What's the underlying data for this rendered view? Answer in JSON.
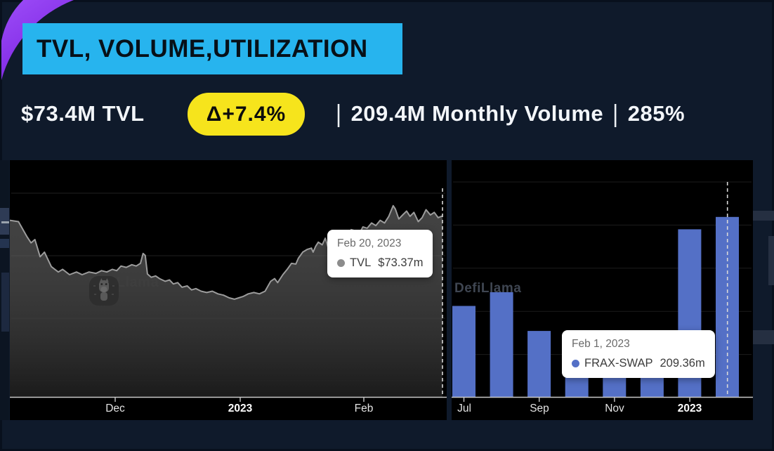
{
  "header": {
    "title": "TVL, VOLUME,UTILIZATION"
  },
  "stats": {
    "tvl": "$73.4M TVL",
    "delta": "Δ+7.4%",
    "sep": "|",
    "volume": "209.4M Monthly Volume",
    "utilization": "285%"
  },
  "colors": {
    "background": "#0f1a2b",
    "panel": "#000000",
    "accent_cyan": "#27b4ee",
    "badge_yellow": "#f6e41c",
    "corner_purple": "#8b2ff5",
    "bar_blue": "#5470c6",
    "line_grey": "#9c9c9c",
    "tvl_dot_grey": "#8c8c8c"
  },
  "chart_data": [
    {
      "type": "area",
      "name": "TVL",
      "x_range": "Nov 2022 – Feb 20, 2023",
      "x_ticks": [
        "Dec",
        "2023",
        "Feb"
      ],
      "ylim": [
        46,
        80.5
      ],
      "unit": "USD millions",
      "grid": true,
      "legend": "none (hover tooltip)",
      "tooltip": {
        "date": "Feb 20, 2023",
        "series": "TVL",
        "value": "$73.37m"
      },
      "watermark": "DefiLlama",
      "series_norm_time_value": [
        [
          0,
          72.7
        ],
        [
          0.02,
          72.5
        ],
        [
          0.04,
          70.2
        ],
        [
          0.049,
          69.3
        ],
        [
          0.058,
          69.8
        ],
        [
          0.07,
          67.2
        ],
        [
          0.08,
          67.9
        ],
        [
          0.096,
          65.7
        ],
        [
          0.112,
          64.9
        ],
        [
          0.122,
          65.3
        ],
        [
          0.138,
          64.5
        ],
        [
          0.154,
          64.9
        ],
        [
          0.167,
          64.5
        ],
        [
          0.183,
          64.9
        ],
        [
          0.199,
          64.7
        ],
        [
          0.212,
          65.1
        ],
        [
          0.224,
          64.9
        ],
        [
          0.237,
          65.3
        ],
        [
          0.247,
          65.1
        ],
        [
          0.257,
          65.8
        ],
        [
          0.269,
          65.6
        ],
        [
          0.282,
          66.0
        ],
        [
          0.292,
          65.8
        ],
        [
          0.302,
          66.2
        ],
        [
          0.308,
          67.7
        ],
        [
          0.313,
          67.4
        ],
        [
          0.318,
          64.6
        ],
        [
          0.327,
          64.1
        ],
        [
          0.337,
          64.3
        ],
        [
          0.346,
          63.9
        ],
        [
          0.359,
          63.5
        ],
        [
          0.369,
          63.7
        ],
        [
          0.378,
          63.1
        ],
        [
          0.388,
          63.3
        ],
        [
          0.398,
          62.6
        ],
        [
          0.41,
          62.8
        ],
        [
          0.42,
          62.2
        ],
        [
          0.43,
          62.4
        ],
        [
          0.442,
          62.0
        ],
        [
          0.455,
          61.8
        ],
        [
          0.468,
          62.0
        ],
        [
          0.481,
          61.6
        ],
        [
          0.494,
          61.4
        ],
        [
          0.507,
          61.0
        ],
        [
          0.519,
          60.8
        ],
        [
          0.529,
          61.0
        ],
        [
          0.539,
          61.2
        ],
        [
          0.551,
          61.6
        ],
        [
          0.564,
          61.8
        ],
        [
          0.577,
          61.6
        ],
        [
          0.59,
          62.0
        ],
        [
          0.603,
          63.5
        ],
        [
          0.612,
          63.9
        ],
        [
          0.619,
          63.3
        ],
        [
          0.631,
          64.5
        ],
        [
          0.641,
          65.3
        ],
        [
          0.651,
          66.2
        ],
        [
          0.661,
          66.1
        ],
        [
          0.667,
          67.0
        ],
        [
          0.677,
          67.9
        ],
        [
          0.687,
          68.3
        ],
        [
          0.697,
          68.5
        ],
        [
          0.701,
          67.9
        ],
        [
          0.707,
          68.8
        ],
        [
          0.713,
          69.4
        ],
        [
          0.722,
          69.0
        ],
        [
          0.729,
          70.0
        ],
        [
          0.737,
          68.3
        ],
        [
          0.744,
          69.6
        ],
        [
          0.753,
          70.7
        ],
        [
          0.763,
          70.7
        ],
        [
          0.77,
          71.1
        ],
        [
          0.779,
          70.3
        ],
        [
          0.789,
          71.3
        ],
        [
          0.799,
          71.1
        ],
        [
          0.806,
          70.5
        ],
        [
          0.816,
          71.7
        ],
        [
          0.826,
          71.5
        ],
        [
          0.836,
          72.3
        ],
        [
          0.846,
          71.9
        ],
        [
          0.856,
          72.7
        ],
        [
          0.866,
          72.3
        ],
        [
          0.876,
          73.3
        ],
        [
          0.886,
          74.9
        ],
        [
          0.891,
          74.4
        ],
        [
          0.899,
          72.9
        ],
        [
          0.908,
          73.5
        ],
        [
          0.917,
          74.1
        ],
        [
          0.925,
          73.3
        ],
        [
          0.934,
          73.9
        ],
        [
          0.944,
          72.5
        ],
        [
          0.953,
          73.1
        ],
        [
          0.962,
          74.3
        ],
        [
          0.972,
          73.5
        ],
        [
          0.981,
          73.9
        ],
        [
          0.99,
          73.1
        ],
        [
          1,
          73.37
        ]
      ]
    },
    {
      "type": "bar",
      "name": "FRAX-SWAP monthly volume",
      "categories": [
        "Jul 2022",
        "Aug 2022",
        "Sep 2022",
        "Oct 2022",
        "Nov 2022",
        "Dec 2022",
        "Jan 2023",
        "Feb 2023"
      ],
      "values": [
        106,
        122,
        77,
        50,
        42,
        45,
        195,
        209.36
      ],
      "x_ticks": [
        "Jul",
        "Sep",
        "Nov",
        "2023"
      ],
      "ylim": [
        0,
        250
      ],
      "unit": "USD millions",
      "grid": true,
      "legend": "none (hover tooltip)",
      "tooltip": {
        "date": "Feb 1, 2023",
        "series": "FRAX-SWAP",
        "value": "209.36m"
      },
      "watermark": "DefiLlama"
    }
  ]
}
